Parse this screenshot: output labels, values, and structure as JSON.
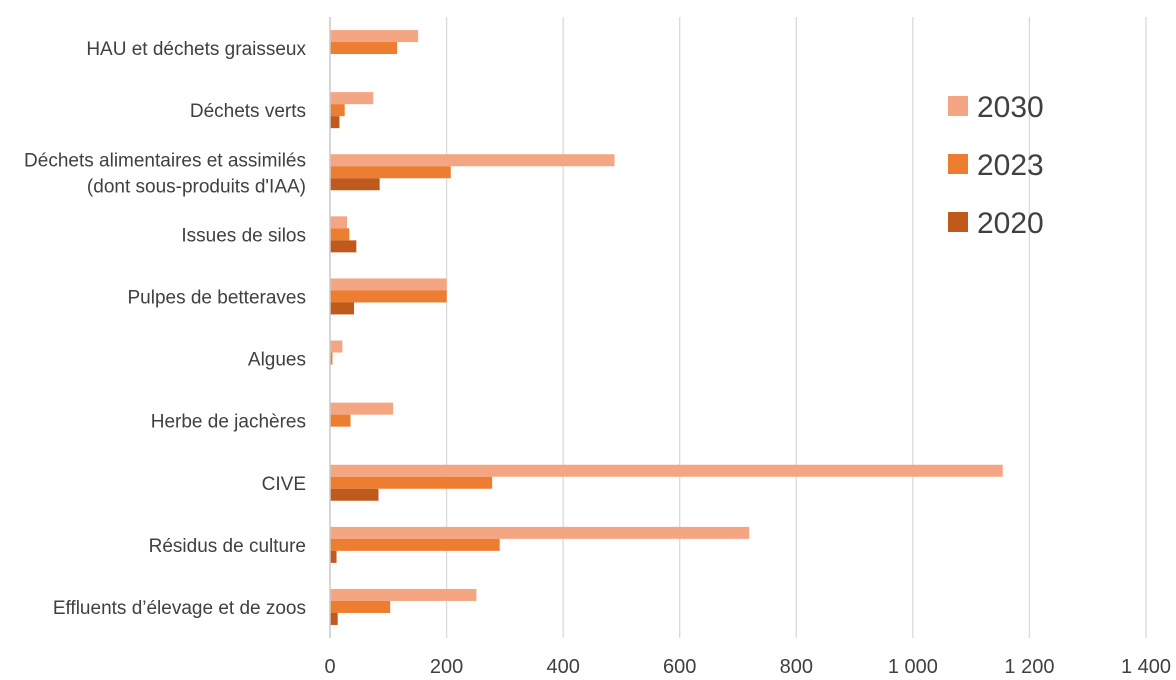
{
  "chart_data": {
    "type": "bar",
    "orientation": "horizontal",
    "categories": [
      "HAU et déchets graisseux",
      "Déchets verts",
      "Déchets alimentaires et assimilés\n(dont sous-produits d'IAA)",
      "Issues de silos",
      "Pulpes de betteraves",
      "Algues",
      "Herbe de jachères",
      "CIVE",
      "Résidus de culture",
      "Effluents d’élevage et de zoos"
    ],
    "series": [
      {
        "name": "2030",
        "color": "#f4a582",
        "values": [
          150,
          73,
          487,
          28,
          199,
          20,
          107,
          1153,
          718,
          250
        ]
      },
      {
        "name": "2023",
        "color": "#ed7d31",
        "values": [
          114,
          24,
          206,
          32,
          199,
          3,
          34,
          277,
          290,
          102
        ]
      },
      {
        "name": "2020",
        "color": "#c05a1c",
        "values": [
          0,
          15,
          84,
          44,
          40,
          0,
          0,
          82,
          10,
          12
        ]
      }
    ],
    "xlim": [
      0,
      1400
    ],
    "xticks": [
      0,
      200,
      400,
      600,
      800,
      1000,
      1200,
      1400
    ],
    "xtick_labels": [
      "0",
      "200",
      "400",
      "600",
      "800",
      "1 000",
      "1 200",
      "1 400"
    ],
    "grid": true,
    "legend_position": "right",
    "title": "",
    "xlabel": "",
    "ylabel": ""
  }
}
